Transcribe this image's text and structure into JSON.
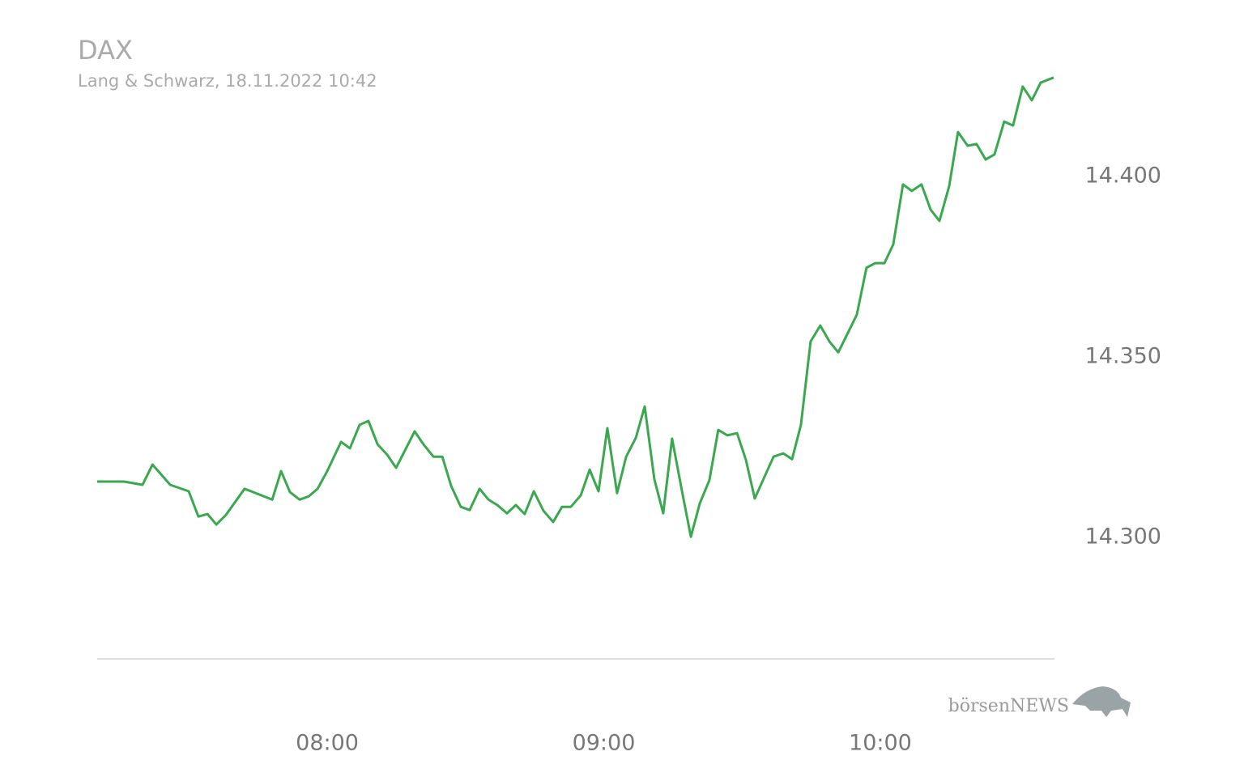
{
  "chart_data": {
    "type": "line",
    "title": "DAX",
    "subtitle": "Lang & Schwarz, 18.11.2022 10:42",
    "logo": "börsenNEWS",
    "x": [
      7.168,
      7.265,
      7.332,
      7.368,
      7.432,
      7.499,
      7.534,
      7.567,
      7.599,
      7.634,
      7.701,
      7.801,
      7.833,
      7.865,
      7.9,
      7.933,
      7.965,
      8.0,
      8.05,
      8.082,
      8.117,
      8.149,
      8.182,
      8.217,
      8.249,
      8.316,
      8.348,
      8.384,
      8.416,
      8.448,
      8.483,
      8.515,
      8.551,
      8.583,
      8.615,
      8.65,
      8.682,
      8.714,
      8.747,
      8.782,
      8.817,
      8.849,
      8.881,
      8.917,
      8.949,
      8.981,
      9.013,
      9.048,
      9.081,
      9.116,
      9.148,
      9.183,
      9.215,
      9.247,
      9.283,
      9.315,
      9.347,
      9.382,
      9.414,
      9.447,
      9.482,
      9.514,
      9.546,
      9.614,
      9.649,
      9.681,
      9.713,
      9.748,
      9.783,
      9.816,
      9.848,
      9.883,
      9.915,
      9.95,
      9.982,
      10.015,
      10.047,
      10.082,
      10.114,
      10.149,
      10.182,
      10.214,
      10.249,
      10.281,
      10.316,
      10.348,
      10.381,
      10.413,
      10.448,
      10.48,
      10.515,
      10.548,
      10.58,
      10.627
    ],
    "series": [
      {
        "name": "DAX",
        "color": "#3aa84e",
        "values": [
          14315.5,
          14315.5,
          14314.6,
          14320.2,
          14314.6,
          14312.8,
          14305.8,
          14306.5,
          14303.6,
          14306.3,
          14313.5,
          14310.5,
          14318.4,
          14312.6,
          14310.5,
          14311.4,
          14313.5,
          14318.4,
          14326.5,
          14324.7,
          14331.2,
          14332.3,
          14325.8,
          14322.9,
          14319.3,
          14329.4,
          14325.8,
          14322.4,
          14322.4,
          14314.3,
          14308.5,
          14307.6,
          14313.5,
          14310.5,
          14309.0,
          14306.7,
          14309.0,
          14306.5,
          14312.8,
          14307.4,
          14304.3,
          14308.5,
          14308.5,
          14311.7,
          14318.8,
          14312.8,
          14330.3,
          14312.3,
          14322.4,
          14327.6,
          14336.3,
          14316.1,
          14306.7,
          14327.4,
          14312.8,
          14300.2,
          14309.4,
          14315.9,
          14329.8,
          14328.3,
          14328.9,
          14321.5,
          14310.8,
          14322.4,
          14323.3,
          14321.7,
          14331.2,
          14354.3,
          14358.7,
          14354.3,
          14351.3,
          14356.7,
          14361.7,
          14374.7,
          14376.0,
          14376.0,
          14381.2,
          14397.8,
          14396.0,
          14397.8,
          14390.8,
          14387.7,
          14397.3,
          14412.3,
          14408.5,
          14409.0,
          14404.7,
          14406.1,
          14415.2,
          14414.1,
          14424.9,
          14421.1,
          14426.0,
          14427.4
        ]
      }
    ],
    "xlim": [
      7.168,
      10.627
    ],
    "xticks": [
      {
        "value": 8,
        "label": "08:00"
      },
      {
        "value": 9,
        "label": "09:00"
      },
      {
        "value": 10,
        "label": "10:00"
      }
    ],
    "ylim": [
      14266.4,
      14428.7
    ],
    "yticks": [
      {
        "value": 14300,
        "label": "14.300"
      },
      {
        "value": 14350,
        "label": "14.350"
      },
      {
        "value": 14400,
        "label": "14.400"
      }
    ],
    "grid": false
  }
}
